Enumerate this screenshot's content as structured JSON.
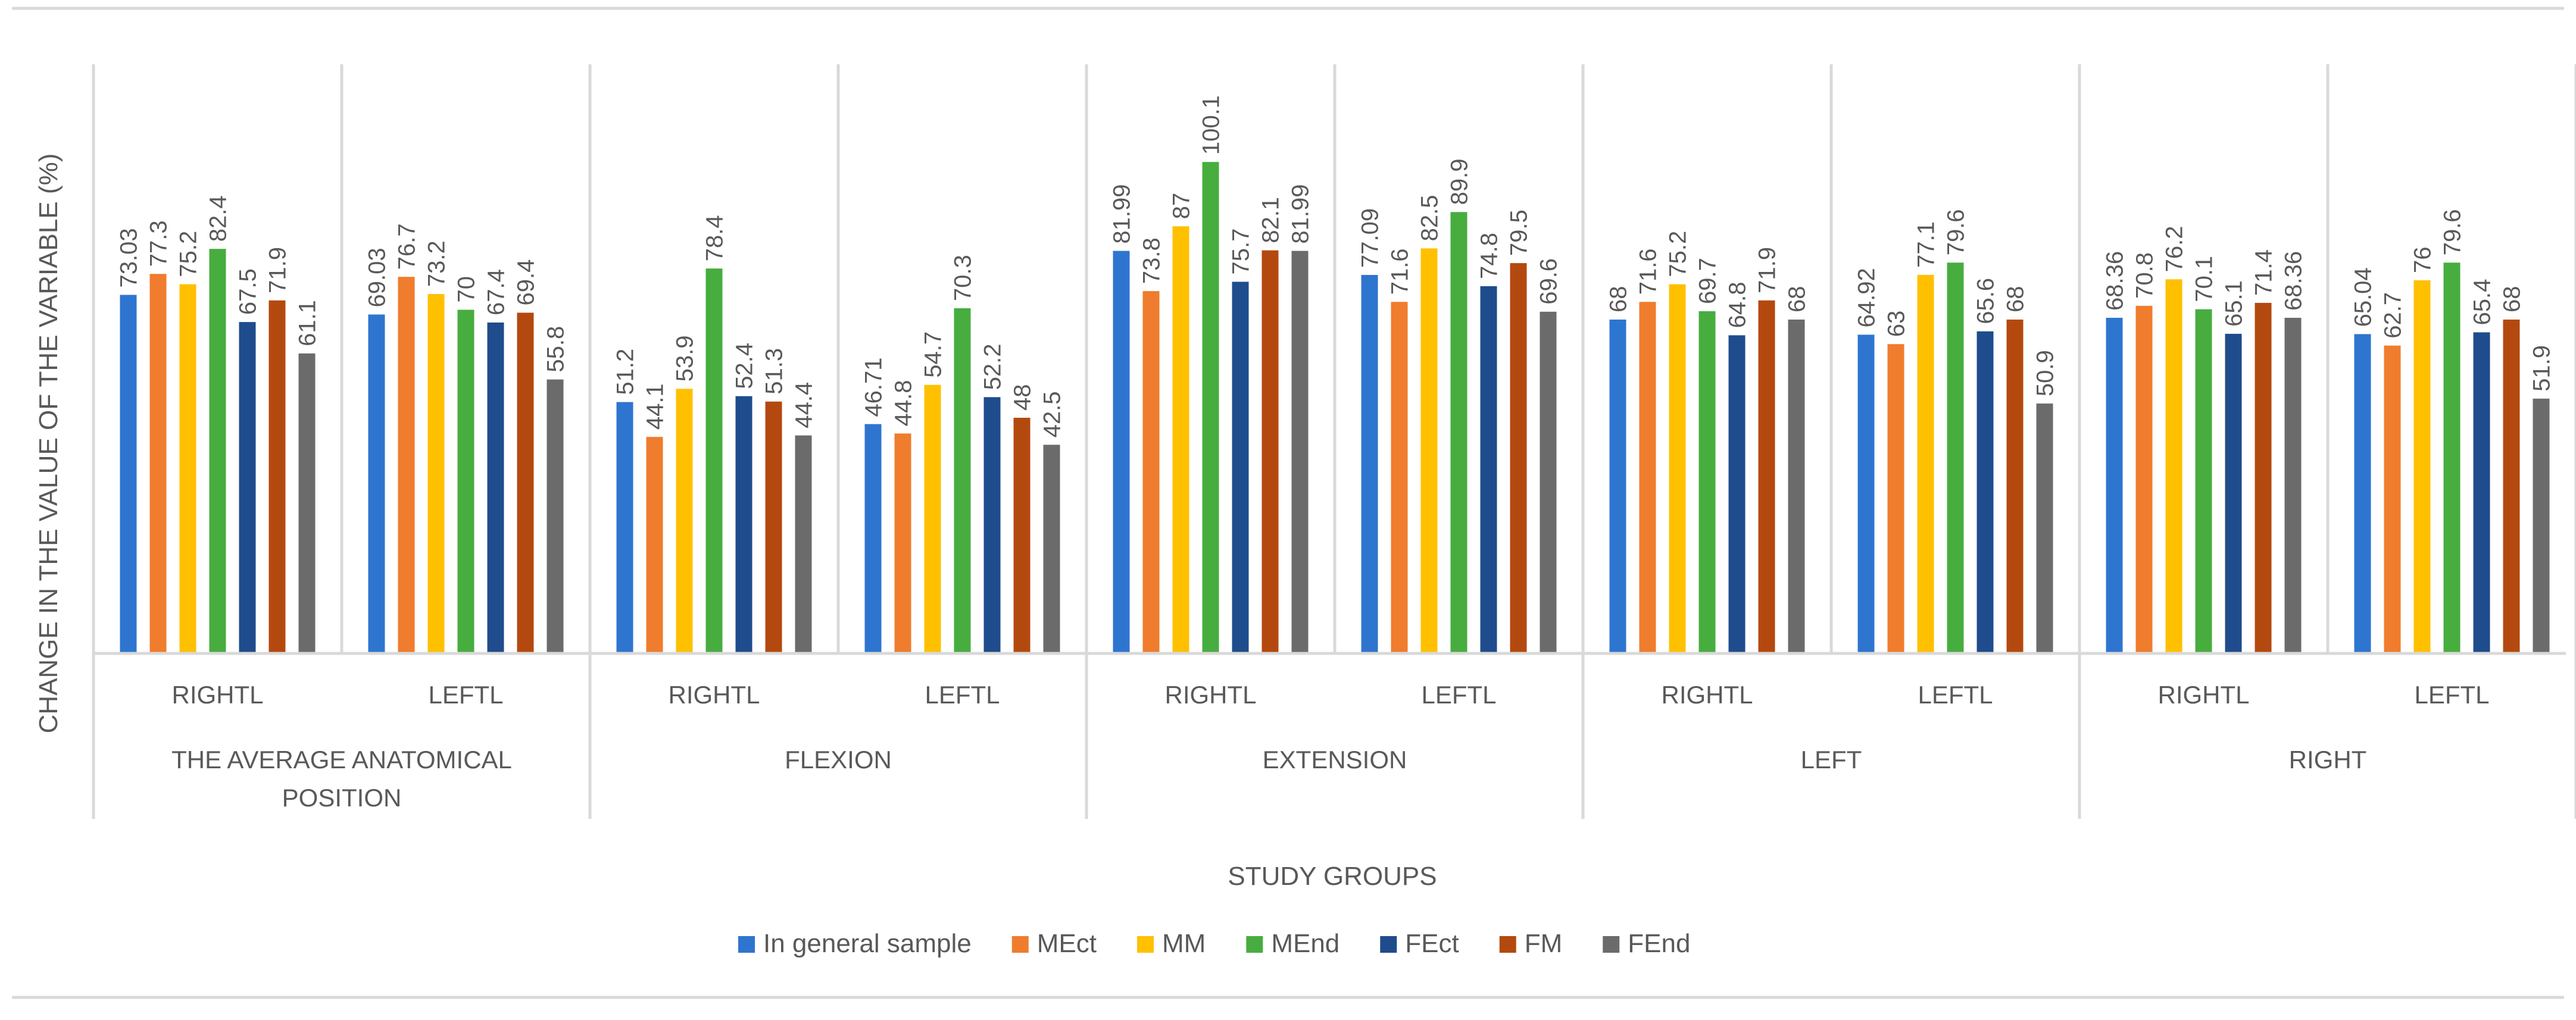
{
  "chart_data": {
    "type": "bar",
    "title": "",
    "xlabel": "STUDY GROUPS",
    "ylabel": "CHANGE IN THE VALUE OF THE VARIABLE (%)",
    "ylim": [
      0,
      120
    ],
    "grid": false,
    "legend_position": "bottom",
    "groups": [
      {
        "label": "THE AVERAGE ANATOMICAL POSITION",
        "subgroups": [
          {
            "label": "RIGHTL",
            "values": [
              73.03,
              77.3,
              75.2,
              82.4,
              67.5,
              71.9,
              61.1
            ]
          },
          {
            "label": "LEFTL",
            "values": [
              69.03,
              76.7,
              73.2,
              70,
              67.4,
              69.4,
              55.8
            ]
          }
        ]
      },
      {
        "label": "FLEXION",
        "subgroups": [
          {
            "label": "RIGHTL",
            "values": [
              51.2,
              44.1,
              53.9,
              78.4,
              52.4,
              51.3,
              44.4
            ]
          },
          {
            "label": "LEFTL",
            "values": [
              46.71,
              44.8,
              54.7,
              70.3,
              52.2,
              48,
              42.5
            ]
          }
        ]
      },
      {
        "label": "EXTENSION",
        "subgroups": [
          {
            "label": "RIGHTL",
            "values": [
              81.99,
              73.8,
              87,
              100.1,
              75.7,
              82.1,
              81.99
            ]
          },
          {
            "label": "LEFTL",
            "values": [
              77.09,
              71.6,
              82.5,
              89.9,
              74.8,
              79.5,
              69.6
            ]
          }
        ]
      },
      {
        "label": "LEFT",
        "subgroups": [
          {
            "label": "RIGHTL",
            "values": [
              68,
              71.6,
              75.2,
              69.7,
              64.8,
              71.9,
              68
            ]
          },
          {
            "label": "LEFTL",
            "values": [
              64.92,
              63,
              77.1,
              79.6,
              65.6,
              68,
              50.9
            ]
          }
        ]
      },
      {
        "label": "RIGHT",
        "subgroups": [
          {
            "label": "RIGHTL",
            "values": [
              68.36,
              70.8,
              76.2,
              70.1,
              65.1,
              71.4,
              68.36
            ]
          },
          {
            "label": "LEFTL",
            "values": [
              65.04,
              62.7,
              76,
              79.6,
              65.4,
              68,
              51.9
            ]
          }
        ]
      }
    ],
    "series": [
      {
        "name": "In general sample",
        "color": "#2E75D0"
      },
      {
        "name": "MEct",
        "color": "#F07C2E"
      },
      {
        "name": "MM",
        "color": "#FFC000"
      },
      {
        "name": "MEnd",
        "color": "#47AD3F"
      },
      {
        "name": "FEct",
        "color": "#1F4C8C"
      },
      {
        "name": "FM",
        "color": "#B4490F"
      },
      {
        "name": "FEnd",
        "color": "#6B6B6B"
      }
    ]
  }
}
